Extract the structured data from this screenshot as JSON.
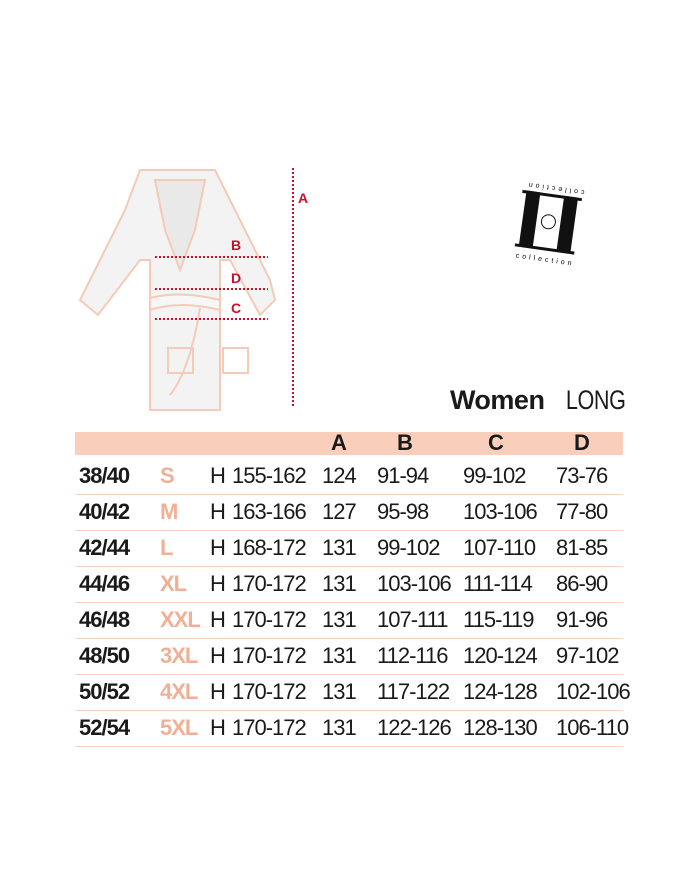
{
  "diagram": {
    "labels": [
      "A",
      "B",
      "D",
      "C"
    ],
    "arrow_color": "#c8102e"
  },
  "logo": {
    "text_top": "collection",
    "text_bottom": "collection"
  },
  "title": {
    "bold": "Women",
    "light": "LONG"
  },
  "table": {
    "header_color": "#f9cfbb",
    "headers": [
      "A",
      "B",
      "C",
      "D"
    ],
    "rows": [
      {
        "eu": "38/40",
        "size": "S",
        "h": "H",
        "height": "155-162",
        "a": "124",
        "b": "91-94",
        "c": "99-102",
        "d": "73-76"
      },
      {
        "eu": "40/42",
        "size": "M",
        "h": "H",
        "height": "163-166",
        "a": "127",
        "b": "95-98",
        "c": "103-106",
        "d": "77-80"
      },
      {
        "eu": "42/44",
        "size": "L",
        "h": "H",
        "height": "168-172",
        "a": "131",
        "b": "99-102",
        "c": "107-110",
        "d": "81-85"
      },
      {
        "eu": "44/46",
        "size": "XL",
        "h": "H",
        "height": "170-172",
        "a": "131",
        "b": "103-106",
        "c": "111-114",
        "d": "86-90"
      },
      {
        "eu": "46/48",
        "size": "XXL",
        "h": "H",
        "height": "170-172",
        "a": "131",
        "b": "107-111",
        "c": "115-119",
        "d": "91-96"
      },
      {
        "eu": "48/50",
        "size": "3XL",
        "h": "H",
        "height": "170-172",
        "a": "131",
        "b": "112-116",
        "c": "120-124",
        "d": "97-102"
      },
      {
        "eu": "50/52",
        "size": "4XL",
        "h": "H",
        "height": "170-172",
        "a": "131",
        "b": "117-122",
        "c": "124-128",
        "d": "102-106"
      },
      {
        "eu": "52/54",
        "size": "5XL",
        "h": "H",
        "height": "170-172",
        "a": "131",
        "b": "122-126",
        "c": "128-130",
        "d": "106-110"
      }
    ]
  }
}
